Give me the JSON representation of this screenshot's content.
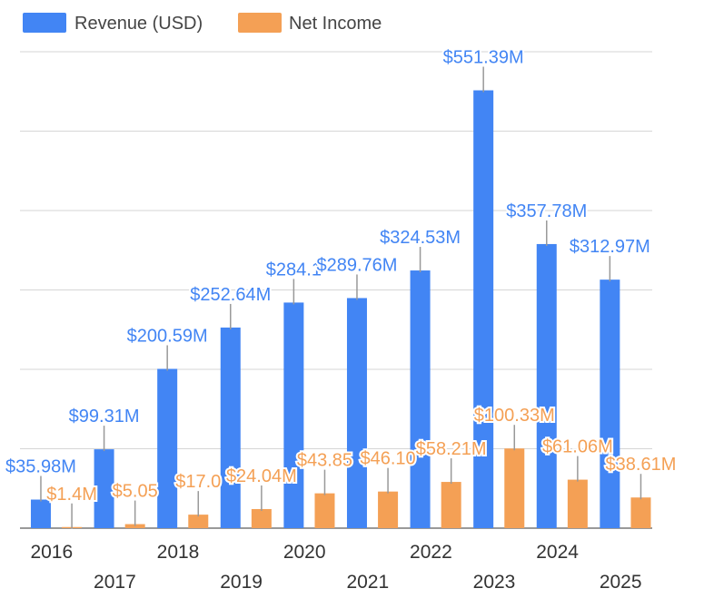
{
  "chart_data": {
    "type": "bar",
    "title": "",
    "xlabel": "",
    "ylabel": "",
    "ylim": [
      0,
      600
    ],
    "grid": true,
    "legend_position": "top-left",
    "categories": [
      "2016",
      "2017",
      "2018",
      "2019",
      "2020",
      "2021",
      "2022",
      "2023",
      "2024",
      "2025"
    ],
    "series": [
      {
        "name": "Revenue (USD)",
        "color": "#4285f4",
        "values": [
          35.98,
          99.31,
          200.59,
          252.64,
          284.1,
          289.76,
          324.53,
          551.39,
          357.78,
          312.97
        ],
        "labels": [
          "$35.98M",
          "$99.31M",
          "$200.59M",
          "$252.64M",
          "$284.1",
          "$289.76M",
          "$324.53M",
          "$551.39M",
          "$357.78M",
          "$312.97M"
        ]
      },
      {
        "name": "Net Income",
        "color": "#f4a055",
        "values": [
          1.4,
          5.05,
          17.0,
          24.04,
          43.85,
          46.1,
          58.21,
          100.33,
          61.06,
          38.61
        ],
        "labels": [
          "$1.4M",
          "$5.05",
          "$17.0",
          "$24.04M",
          "$43.85",
          "$46.10",
          "$58.21M",
          "$100.33M",
          "$61.06M",
          "$38.61M"
        ]
      }
    ]
  }
}
